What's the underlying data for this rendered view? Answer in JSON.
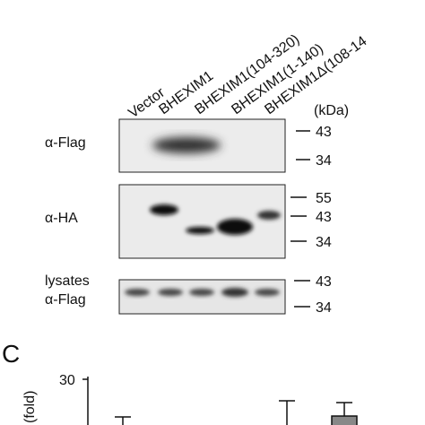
{
  "lanes": [
    "Vector",
    "BHEXIM1",
    "BHEXIM1(104-320)",
    "BHEXIM1(1-140)",
    "BHEXIM1Δ(108-14"
  ],
  "kda_label": "(kDa)",
  "panels": [
    {
      "label": "α-Flag",
      "markers": [
        "43",
        "34"
      ]
    },
    {
      "label": "α-HA",
      "markers": [
        "55",
        "43",
        "34"
      ]
    },
    {
      "label": "lysates",
      "sublabel": "α-Flag",
      "markers": [
        "43",
        "34"
      ]
    }
  ],
  "panel_c": {
    "letter": "C",
    "tick": "30",
    "axis_label": "(fold)"
  }
}
